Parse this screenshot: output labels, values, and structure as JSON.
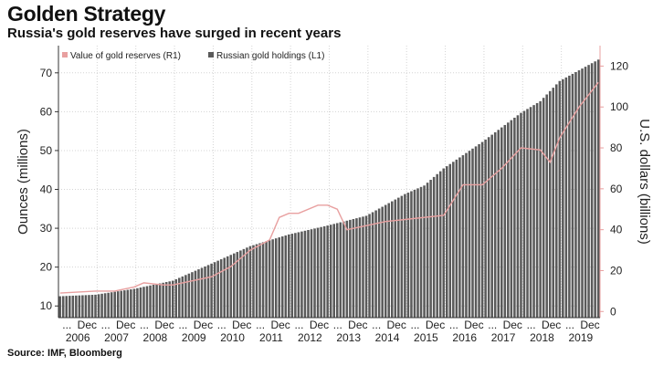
{
  "header": {
    "title": "Golden Strategy",
    "subtitle": "Russia's gold reserves have surged in recent years"
  },
  "footer": {
    "source": "Source: IMF, Bloomberg"
  },
  "colors": {
    "bars": "#5a5a5a",
    "line": "#e8a0a0",
    "axis_right": "#e8a0a0",
    "grid": "#d4d4d4"
  },
  "chart_data": {
    "type": "bar",
    "legend": [
      {
        "label": "Value of gold reserves (R1)",
        "color": "#e8a0a0",
        "kind": "line",
        "axis": "right"
      },
      {
        "label": "Russian gold holdings (L1)",
        "color": "#5a5a5a",
        "kind": "bar",
        "axis": "left"
      }
    ],
    "ylabel_left": "Ounces (millions)",
    "ylabel_right": "U.S. dollars (billions)",
    "ylim_left": [
      7,
      77
    ],
    "yticks_left": [
      10,
      20,
      30,
      40,
      50,
      60,
      70
    ],
    "ylim_right": [
      -3,
      130
    ],
    "yticks_right": [
      0,
      20,
      40,
      60,
      80,
      100,
      120
    ],
    "x_start": "2006-01",
    "x_end": "2019-12",
    "x_top_labels": [
      "...",
      "Dec",
      "...",
      "Dec",
      "...",
      "Dec",
      "...",
      "Dec",
      "...",
      "Dec",
      "...",
      "Dec",
      "...",
      "Dec",
      "...",
      "Dec",
      "...",
      "Dec",
      "...",
      "Dec",
      "...",
      "Dec",
      "...",
      "Dec",
      "...",
      "Dec",
      "...",
      "Dec"
    ],
    "x_years": [
      "2006",
      "2007",
      "2008",
      "2009",
      "2010",
      "2011",
      "2012",
      "2013",
      "2014",
      "2015",
      "2016",
      "2017",
      "2018",
      "2019"
    ],
    "grid": true,
    "series": [
      {
        "name": "Russian gold holdings (L1)",
        "axis": "left",
        "points": [
          [
            "2006-01",
            12.5
          ],
          [
            "2006-12",
            12.9
          ],
          [
            "2007-12",
            14.4
          ],
          [
            "2008-12",
            16.5
          ],
          [
            "2009-12",
            20.9
          ],
          [
            "2010-12",
            25.4
          ],
          [
            "2011-12",
            28.4
          ],
          [
            "2012-12",
            30.7
          ],
          [
            "2013-12",
            33.2
          ],
          [
            "2014-12",
            38.8
          ],
          [
            "2015-06",
            41.0
          ],
          [
            "2015-12",
            45.4
          ],
          [
            "2016-12",
            52.2
          ],
          [
            "2017-12",
            59.7
          ],
          [
            "2018-06",
            62.7
          ],
          [
            "2018-12",
            67.9
          ],
          [
            "2019-12",
            73.4
          ]
        ]
      },
      {
        "name": "Value of gold reserves (R1)",
        "axis": "right",
        "points": [
          [
            "2006-01",
            9
          ],
          [
            "2006-12",
            10
          ],
          [
            "2007-06",
            10
          ],
          [
            "2007-12",
            12
          ],
          [
            "2008-03",
            14
          ],
          [
            "2008-09",
            13
          ],
          [
            "2008-12",
            13
          ],
          [
            "2009-06",
            15
          ],
          [
            "2009-12",
            17
          ],
          [
            "2010-06",
            22
          ],
          [
            "2010-12",
            30
          ],
          [
            "2011-06",
            35
          ],
          [
            "2011-09",
            46
          ],
          [
            "2011-12",
            48
          ],
          [
            "2012-03",
            48
          ],
          [
            "2012-09",
            52
          ],
          [
            "2012-12",
            52
          ],
          [
            "2013-03",
            50
          ],
          [
            "2013-06",
            40
          ],
          [
            "2013-12",
            42
          ],
          [
            "2014-06",
            44
          ],
          [
            "2014-12",
            45
          ],
          [
            "2015-06",
            46
          ],
          [
            "2015-12",
            47
          ],
          [
            "2016-06",
            62
          ],
          [
            "2016-12",
            62
          ],
          [
            "2017-06",
            70
          ],
          [
            "2017-12",
            80
          ],
          [
            "2018-06",
            79
          ],
          [
            "2018-09",
            73
          ],
          [
            "2018-12",
            85
          ],
          [
            "2019-06",
            100
          ],
          [
            "2019-12",
            112
          ]
        ]
      }
    ]
  }
}
